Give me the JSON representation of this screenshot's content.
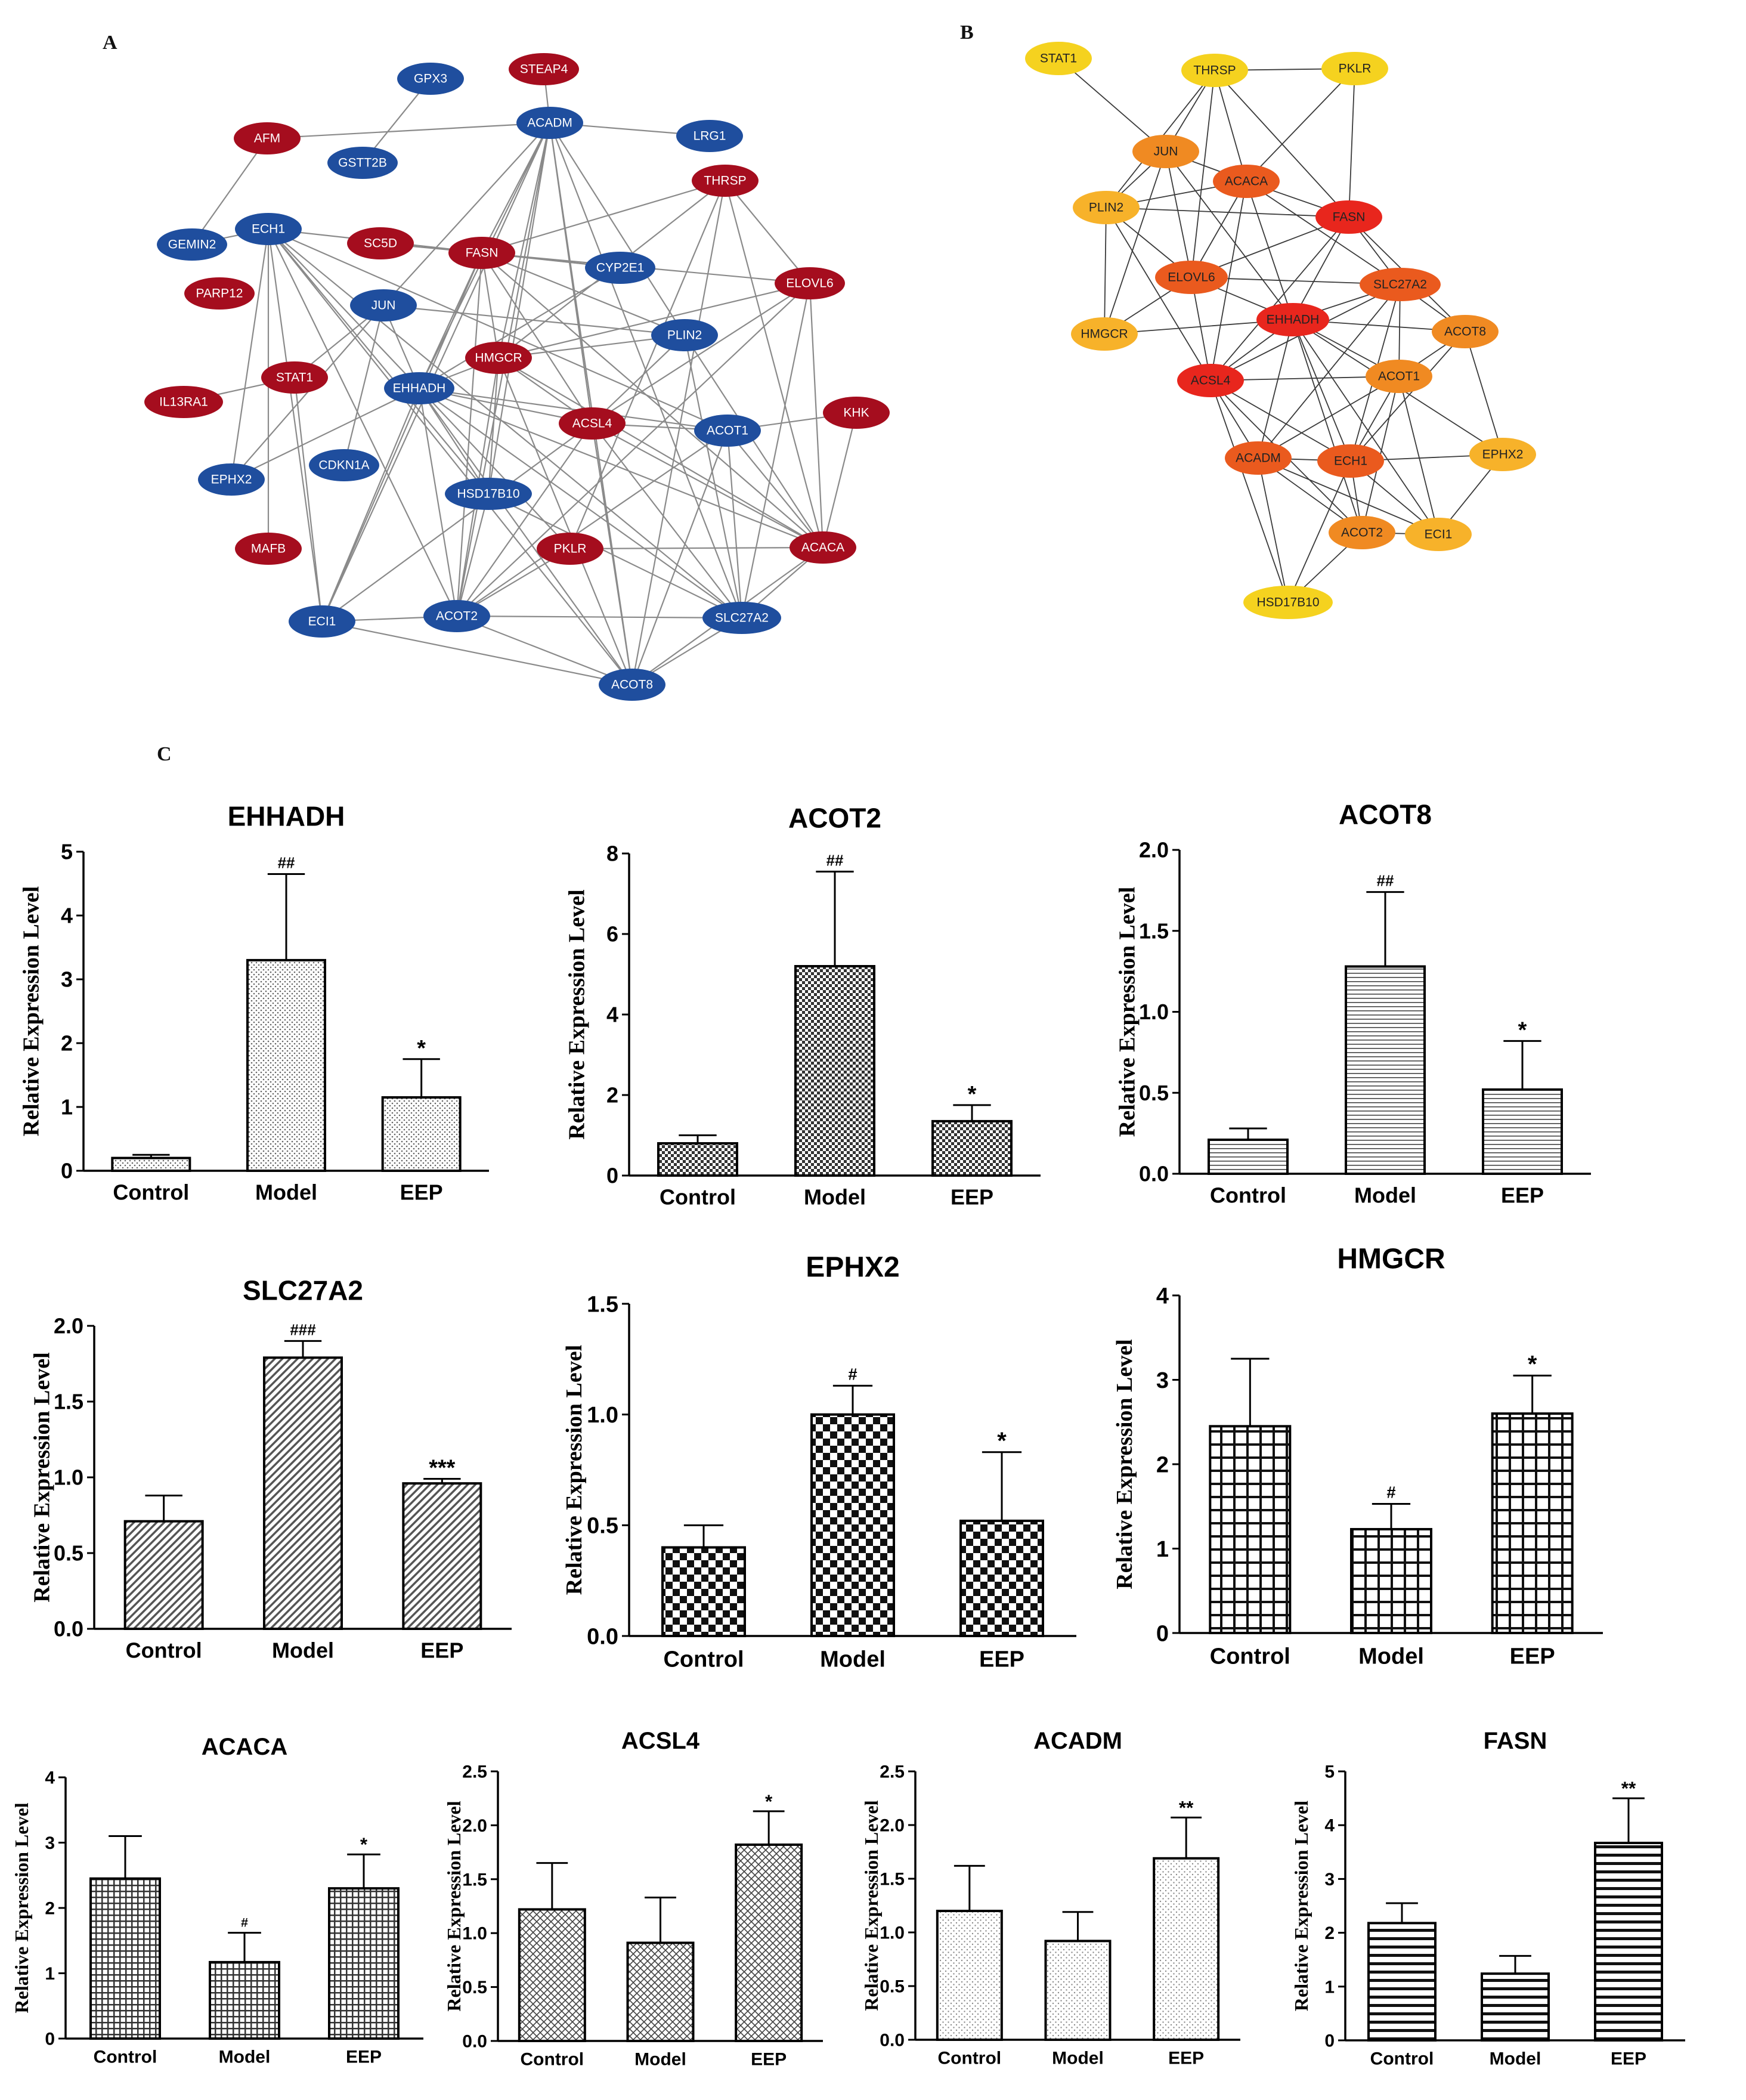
{
  "panels": {
    "a": "A",
    "b": "B",
    "c": "C"
  },
  "colors": {
    "red_node": "#a50d1e",
    "blue_node": "#1f4e9e",
    "edge": "#8a8a8a",
    "b_yellow": "#f5d21f",
    "b_lightorange": "#f7b22a",
    "b_orange": "#f08a22",
    "b_redorange": "#ea5a1e",
    "b_red": "#e8261d"
  },
  "network_a": {
    "nodes": [
      {
        "id": "GPX3",
        "group": "blue"
      },
      {
        "id": "STEAP4",
        "group": "red"
      },
      {
        "id": "AFM",
        "group": "red"
      },
      {
        "id": "ACADM",
        "group": "blue"
      },
      {
        "id": "LRG1",
        "group": "blue"
      },
      {
        "id": "GSTT2B",
        "group": "blue"
      },
      {
        "id": "THRSP",
        "group": "red"
      },
      {
        "id": "ECH1",
        "group": "blue"
      },
      {
        "id": "GEMIN2",
        "group": "blue"
      },
      {
        "id": "SC5D",
        "group": "red"
      },
      {
        "id": "FASN",
        "group": "red"
      },
      {
        "id": "CYP2E1",
        "group": "blue"
      },
      {
        "id": "ELOVL6",
        "group": "red"
      },
      {
        "id": "PARP12",
        "group": "red"
      },
      {
        "id": "JUN",
        "group": "blue"
      },
      {
        "id": "PLIN2",
        "group": "blue"
      },
      {
        "id": "HMGCR",
        "group": "red"
      },
      {
        "id": "STAT1",
        "group": "red"
      },
      {
        "id": "IL13RA1",
        "group": "red"
      },
      {
        "id": "EHHADH",
        "group": "blue"
      },
      {
        "id": "KHK",
        "group": "red"
      },
      {
        "id": "ACSL4",
        "group": "red"
      },
      {
        "id": "ACOT1",
        "group": "blue"
      },
      {
        "id": "EPHX2",
        "group": "blue"
      },
      {
        "id": "CDKN1A",
        "group": "blue"
      },
      {
        "id": "HSD17B10",
        "group": "blue"
      },
      {
        "id": "MAFB",
        "group": "red"
      },
      {
        "id": "PKLR",
        "group": "red"
      },
      {
        "id": "ACACA",
        "group": "red"
      },
      {
        "id": "ECI1",
        "group": "blue"
      },
      {
        "id": "ACOT2",
        "group": "blue"
      },
      {
        "id": "SLC27A2",
        "group": "blue"
      },
      {
        "id": "ACOT8",
        "group": "blue"
      }
    ],
    "edges": [
      [
        "GPX3",
        "GSTT2B"
      ],
      [
        "STEAP4",
        "ACADM"
      ],
      [
        "AFM",
        "GEMIN2"
      ],
      [
        "AFM",
        "ACADM"
      ],
      [
        "ACADM",
        "LRG1"
      ],
      [
        "ACADM",
        "EHHADH"
      ],
      [
        "ACADM",
        "HMGCR"
      ],
      [
        "ACADM",
        "FASN"
      ],
      [
        "ACADM",
        "ACOT2"
      ],
      [
        "ACADM",
        "ECI1"
      ],
      [
        "ACADM",
        "SLC27A2"
      ],
      [
        "ACADM",
        "ACOT8"
      ],
      [
        "ACADM",
        "HSD17B10"
      ],
      [
        "ACADM",
        "JUN"
      ],
      [
        "ACADM",
        "ACSL4"
      ],
      [
        "ACADM",
        "PLIN2"
      ],
      [
        "ECH1",
        "GEMIN2"
      ],
      [
        "ECH1",
        "EHHADH"
      ],
      [
        "ECH1",
        "HSD17B10"
      ],
      [
        "ECH1",
        "ACOT2"
      ],
      [
        "ECH1",
        "CYP2E1"
      ],
      [
        "ECH1",
        "ECI1"
      ],
      [
        "ECH1",
        "ACOT1"
      ],
      [
        "ECH1",
        "SLC27A2"
      ],
      [
        "ECH1",
        "ACOT8"
      ],
      [
        "ECH1",
        "MAFB"
      ],
      [
        "ECH1",
        "EPHX2"
      ],
      [
        "THRSP",
        "FASN"
      ],
      [
        "THRSP",
        "ELOVL6"
      ],
      [
        "THRSP",
        "PKLR"
      ],
      [
        "THRSP",
        "ACACA"
      ],
      [
        "THRSP",
        "HMGCR"
      ],
      [
        "THRSP",
        "ACOT8"
      ],
      [
        "FASN",
        "ELOVL6"
      ],
      [
        "FASN",
        "ACACA"
      ],
      [
        "FASN",
        "HMGCR"
      ],
      [
        "FASN",
        "PLIN2"
      ],
      [
        "FASN",
        "EHHADH"
      ],
      [
        "FASN",
        "ACSL4"
      ],
      [
        "FASN",
        "CYP2E1"
      ],
      [
        "FASN",
        "ECI1"
      ],
      [
        "FASN",
        "ACOT2"
      ],
      [
        "SC5D",
        "FASN"
      ],
      [
        "ELOVL6",
        "ACSL4"
      ],
      [
        "ELOVL6",
        "HMGCR"
      ],
      [
        "ELOVL6",
        "ACACA"
      ],
      [
        "ELOVL6",
        "ACOT2"
      ],
      [
        "ELOVL6",
        "SLC27A2"
      ],
      [
        "JUN",
        "STAT1"
      ],
      [
        "JUN",
        "EPHX2"
      ],
      [
        "JUN",
        "EHHADH"
      ],
      [
        "JUN",
        "CDKN1A"
      ],
      [
        "JUN",
        "PLIN2"
      ],
      [
        "PLIN2",
        "ACSL4"
      ],
      [
        "PLIN2",
        "HMGCR"
      ],
      [
        "PLIN2",
        "ACACA"
      ],
      [
        "PLIN2",
        "SLC27A2"
      ],
      [
        "HMGCR",
        "EHHADH"
      ],
      [
        "HMGCR",
        "ACSL4"
      ],
      [
        "HMGCR",
        "ACACA"
      ],
      [
        "HMGCR",
        "ACOT2"
      ],
      [
        "HMGCR",
        "HSD17B10"
      ],
      [
        "HMGCR",
        "ACOT8"
      ],
      [
        "STAT1",
        "IL13RA1"
      ],
      [
        "STAT1",
        "ECI1"
      ],
      [
        "EHHADH",
        "ACSL4"
      ],
      [
        "EHHADH",
        "ACOT1"
      ],
      [
        "EHHADH",
        "HSD17B10"
      ],
      [
        "EHHADH",
        "ACOT2"
      ],
      [
        "EHHADH",
        "ECI1"
      ],
      [
        "EHHADH",
        "SLC27A2"
      ],
      [
        "EHHADH",
        "ACOT8"
      ],
      [
        "EHHADH",
        "PKLR"
      ],
      [
        "EHHADH",
        "ACACA"
      ],
      [
        "EHHADH",
        "EPHX2"
      ],
      [
        "EHHADH",
        "CYP2E1"
      ],
      [
        "ACSL4",
        "ACOT1"
      ],
      [
        "ACSL4",
        "SLC27A2"
      ],
      [
        "ACSL4",
        "ACOT2"
      ],
      [
        "ACSL4",
        "ACACA"
      ],
      [
        "ACSL4",
        "ECI1"
      ],
      [
        "ACSL4",
        "ACOT8"
      ],
      [
        "ACOT1",
        "ACOT2"
      ],
      [
        "ACOT1",
        "SLC27A2"
      ],
      [
        "ACOT1",
        "ACACA"
      ],
      [
        "ACOT1",
        "ACOT8"
      ],
      [
        "ACOT1",
        "KHK"
      ],
      [
        "HSD17B10",
        "ACOT2"
      ],
      [
        "HSD17B10",
        "SLC27A2"
      ],
      [
        "ACOT2",
        "ECI1"
      ],
      [
        "ACOT2",
        "SLC27A2"
      ],
      [
        "ACOT2",
        "ACOT8"
      ],
      [
        "SLC27A2",
        "ACOT8"
      ],
      [
        "SLC27A2",
        "ACACA"
      ],
      [
        "ECI1",
        "ACOT8"
      ],
      [
        "PKLR",
        "ACACA"
      ],
      [
        "PKLR",
        "ACOT2"
      ],
      [
        "ACACA",
        "ACOT8"
      ],
      [
        "ACACA",
        "KHK"
      ]
    ]
  },
  "network_b": {
    "nodes": [
      {
        "id": "STAT1",
        "color": "b_yellow"
      },
      {
        "id": "THRSP",
        "color": "b_yellow"
      },
      {
        "id": "PKLR",
        "color": "b_yellow"
      },
      {
        "id": "JUN",
        "color": "b_orange"
      },
      {
        "id": "ACACA",
        "color": "b_redorange"
      },
      {
        "id": "PLIN2",
        "color": "b_lightorange"
      },
      {
        "id": "FASN",
        "color": "b_red"
      },
      {
        "id": "ELOVL6",
        "color": "b_redorange"
      },
      {
        "id": "SLC27A2",
        "color": "b_redorange"
      },
      {
        "id": "EHHADH",
        "color": "b_red"
      },
      {
        "id": "HMGCR",
        "color": "b_lightorange"
      },
      {
        "id": "ACOT8",
        "color": "b_orange"
      },
      {
        "id": "ACSL4",
        "color": "b_red"
      },
      {
        "id": "ACOT1",
        "color": "b_orange"
      },
      {
        "id": "ACADM",
        "color": "b_redorange"
      },
      {
        "id": "ECH1",
        "color": "b_redorange"
      },
      {
        "id": "EPHX2",
        "color": "b_lightorange"
      },
      {
        "id": "ACOT2",
        "color": "b_orange"
      },
      {
        "id": "ECI1",
        "color": "b_lightorange"
      },
      {
        "id": "HSD17B10",
        "color": "b_yellow"
      }
    ],
    "edges": [
      [
        "STAT1",
        "JUN"
      ],
      [
        "THRSP",
        "PKLR"
      ],
      [
        "THRSP",
        "JUN"
      ],
      [
        "THRSP",
        "ACACA"
      ],
      [
        "THRSP",
        "FASN"
      ],
      [
        "THRSP",
        "ELOVL6"
      ],
      [
        "THRSP",
        "PLIN2"
      ],
      [
        "PKLR",
        "ACACA"
      ],
      [
        "PKLR",
        "FASN"
      ],
      [
        "JUN",
        "PLIN2"
      ],
      [
        "JUN",
        "ACACA"
      ],
      [
        "JUN",
        "ELOVL6"
      ],
      [
        "JUN",
        "HMGCR"
      ],
      [
        "JUN",
        "EHHADH"
      ],
      [
        "ACACA",
        "FASN"
      ],
      [
        "ACACA",
        "PLIN2"
      ],
      [
        "ACACA",
        "ELOVL6"
      ],
      [
        "ACACA",
        "SLC27A2"
      ],
      [
        "ACACA",
        "EHHADH"
      ],
      [
        "ACACA",
        "ACSL4"
      ],
      [
        "PLIN2",
        "FASN"
      ],
      [
        "PLIN2",
        "ELOVL6"
      ],
      [
        "PLIN2",
        "ACSL4"
      ],
      [
        "PLIN2",
        "HMGCR"
      ],
      [
        "FASN",
        "ELOVL6"
      ],
      [
        "FASN",
        "SLC27A2"
      ],
      [
        "FASN",
        "EHHADH"
      ],
      [
        "FASN",
        "ACSL4"
      ],
      [
        "FASN",
        "ACOT8"
      ],
      [
        "ELOVL6",
        "SLC27A2"
      ],
      [
        "ELOVL6",
        "EHHADH"
      ],
      [
        "ELOVL6",
        "ACSL4"
      ],
      [
        "ELOVL6",
        "HMGCR"
      ],
      [
        "SLC27A2",
        "EHHADH"
      ],
      [
        "SLC27A2",
        "ACOT8"
      ],
      [
        "SLC27A2",
        "ACOT1"
      ],
      [
        "SLC27A2",
        "ACSL4"
      ],
      [
        "SLC27A2",
        "ACADM"
      ],
      [
        "SLC27A2",
        "ECH1"
      ],
      [
        "EHHADH",
        "ACOT8"
      ],
      [
        "EHHADH",
        "ACOT1"
      ],
      [
        "EHHADH",
        "ACSL4"
      ],
      [
        "EHHADH",
        "ACADM"
      ],
      [
        "EHHADH",
        "ECH1"
      ],
      [
        "EHHADH",
        "EPHX2"
      ],
      [
        "EHHADH",
        "ACOT2"
      ],
      [
        "EHHADH",
        "ECI1"
      ],
      [
        "EHHADH",
        "HMGCR"
      ],
      [
        "ACOT8",
        "ACOT1"
      ],
      [
        "ACOT8",
        "EPHX2"
      ],
      [
        "ACOT8",
        "ECH1"
      ],
      [
        "ACSL4",
        "ACADM"
      ],
      [
        "ACSL4",
        "ECH1"
      ],
      [
        "ACSL4",
        "ACOT1"
      ],
      [
        "ACSL4",
        "HSD17B10"
      ],
      [
        "ACSL4",
        "ACOT2"
      ],
      [
        "ACOT1",
        "ECH1"
      ],
      [
        "ACOT1",
        "ACADM"
      ],
      [
        "ACOT1",
        "ECI1"
      ],
      [
        "ACOT1",
        "ACOT2"
      ],
      [
        "ACADM",
        "ECH1"
      ],
      [
        "ACADM",
        "ACOT2"
      ],
      [
        "ACADM",
        "HSD17B10"
      ],
      [
        "ACADM",
        "ECI1"
      ],
      [
        "ECH1",
        "EPHX2"
      ],
      [
        "ECH1",
        "ACOT2"
      ],
      [
        "ECH1",
        "ECI1"
      ],
      [
        "ECH1",
        "HSD17B10"
      ],
      [
        "ACOT2",
        "ECI1"
      ],
      [
        "ACOT2",
        "HSD17B10"
      ],
      [
        "EPHX2",
        "ECI1"
      ]
    ]
  },
  "chart_data": [
    {
      "type": "bar",
      "title": "EHHADH",
      "categories": [
        "Control",
        "Model",
        "EEP"
      ],
      "values": [
        0.2,
        3.3,
        1.15
      ],
      "errors": [
        0.05,
        1.35,
        0.6
      ],
      "sig": [
        "",
        "##",
        "*"
      ],
      "ylabel": "Relative Expression Level",
      "ylim": [
        0,
        5
      ],
      "yticks": [
        "0",
        "1",
        "2",
        "3",
        "4",
        "5"
      ],
      "pattern": "dots"
    },
    {
      "type": "bar",
      "title": "ACOT2",
      "categories": [
        "Control",
        "Model",
        "EEP"
      ],
      "values": [
        0.8,
        5.2,
        1.35
      ],
      "errors": [
        0.2,
        2.35,
        0.4
      ],
      "sig": [
        "",
        "##",
        "*"
      ],
      "ylabel": "Relative Expression Level",
      "ylim": [
        0,
        8
      ],
      "yticks": [
        "0",
        "2",
        "4",
        "6",
        "8"
      ],
      "pattern": "checker-small"
    },
    {
      "type": "bar",
      "title": "ACOT8",
      "categories": [
        "Control",
        "Model",
        "EEP"
      ],
      "values": [
        0.21,
        1.28,
        0.52
      ],
      "errors": [
        0.07,
        0.46,
        0.3
      ],
      "sig": [
        "",
        "##",
        "*"
      ],
      "ylabel": "Relative Expression Level",
      "ylim": [
        0,
        2
      ],
      "yticks": [
        "0.0",
        "0.5",
        "1.0",
        "1.5",
        "2.0"
      ],
      "pattern": "hlines"
    },
    {
      "type": "bar",
      "title": "SLC27A2",
      "categories": [
        "Control",
        "Model",
        "EEP"
      ],
      "values": [
        0.71,
        1.79,
        0.96
      ],
      "errors": [
        0.17,
        0.11,
        0.03
      ],
      "sig": [
        "",
        "###",
        "***"
      ],
      "ylabel": "Relative Expression Level",
      "ylim": [
        0,
        2
      ],
      "yticks": [
        "0.0",
        "0.5",
        "1.0",
        "1.5",
        "2.0"
      ],
      "pattern": "diagonal"
    },
    {
      "type": "bar",
      "title": "EPHX2",
      "categories": [
        "Control",
        "Model",
        "EEP"
      ],
      "values": [
        0.4,
        1.0,
        0.52
      ],
      "errors": [
        0.1,
        0.13,
        0.31
      ],
      "sig": [
        "",
        "#",
        "*"
      ],
      "ylabel": "Relative Expression Level",
      "ylim": [
        0,
        1.5
      ],
      "yticks": [
        "0.0",
        "0.5",
        "1.0",
        "1.5"
      ],
      "pattern": "checker-large"
    },
    {
      "type": "bar",
      "title": "HMGCR",
      "categories": [
        "Control",
        "Model",
        "EEP"
      ],
      "values": [
        2.45,
        1.23,
        2.6
      ],
      "errors": [
        0.8,
        0.3,
        0.45
      ],
      "sig": [
        "",
        "#",
        "*"
      ],
      "ylabel": "Relative Expression Level",
      "ylim": [
        0,
        4
      ],
      "yticks": [
        "0",
        "1",
        "2",
        "3",
        "4"
      ],
      "pattern": "grid"
    },
    {
      "type": "bar",
      "title": "ACACA",
      "categories": [
        "Control",
        "Model",
        "EEP"
      ],
      "values": [
        2.45,
        1.17,
        2.3
      ],
      "errors": [
        0.65,
        0.45,
        0.52
      ],
      "sig": [
        "",
        "#",
        "*"
      ],
      "ylabel": "Relative Expression Level",
      "ylim": [
        0,
        4
      ],
      "yticks": [
        "0",
        "1",
        "2",
        "3",
        "4"
      ],
      "pattern": "grid-fine"
    },
    {
      "type": "bar",
      "title": "ACSL4",
      "categories": [
        "Control",
        "Model",
        "EEP"
      ],
      "values": [
        1.22,
        0.91,
        1.82
      ],
      "errors": [
        0.43,
        0.42,
        0.31
      ],
      "sig": [
        "",
        "",
        "*"
      ],
      "ylabel": "Relative Expression Level",
      "ylim": [
        0,
        2.5
      ],
      "yticks": [
        "0.0",
        "0.5",
        "1.0",
        "1.5",
        "2.0",
        "2.5"
      ],
      "pattern": "weave"
    },
    {
      "type": "bar",
      "title": "ACADM",
      "categories": [
        "Control",
        "Model",
        "EEP"
      ],
      "values": [
        1.2,
        0.92,
        1.69
      ],
      "errors": [
        0.42,
        0.27,
        0.38
      ],
      "sig": [
        "",
        "",
        "**"
      ],
      "ylabel": "Relative Expression Level",
      "ylim": [
        0,
        2.5
      ],
      "yticks": [
        "0.0",
        "0.5",
        "1.0",
        "1.5",
        "2.0",
        "2.5"
      ],
      "pattern": "dots-light"
    },
    {
      "type": "bar",
      "title": "FASN",
      "categories": [
        "Control",
        "Model",
        "EEP"
      ],
      "values": [
        2.18,
        1.24,
        3.67
      ],
      "errors": [
        0.37,
        0.33,
        0.83
      ],
      "sig": [
        "",
        "",
        "**"
      ],
      "ylabel": "Relative Expression Level",
      "ylim": [
        0,
        5
      ],
      "yticks": [
        "0",
        "1",
        "2",
        "3",
        "4",
        "5"
      ],
      "pattern": "hlines-thick"
    }
  ]
}
